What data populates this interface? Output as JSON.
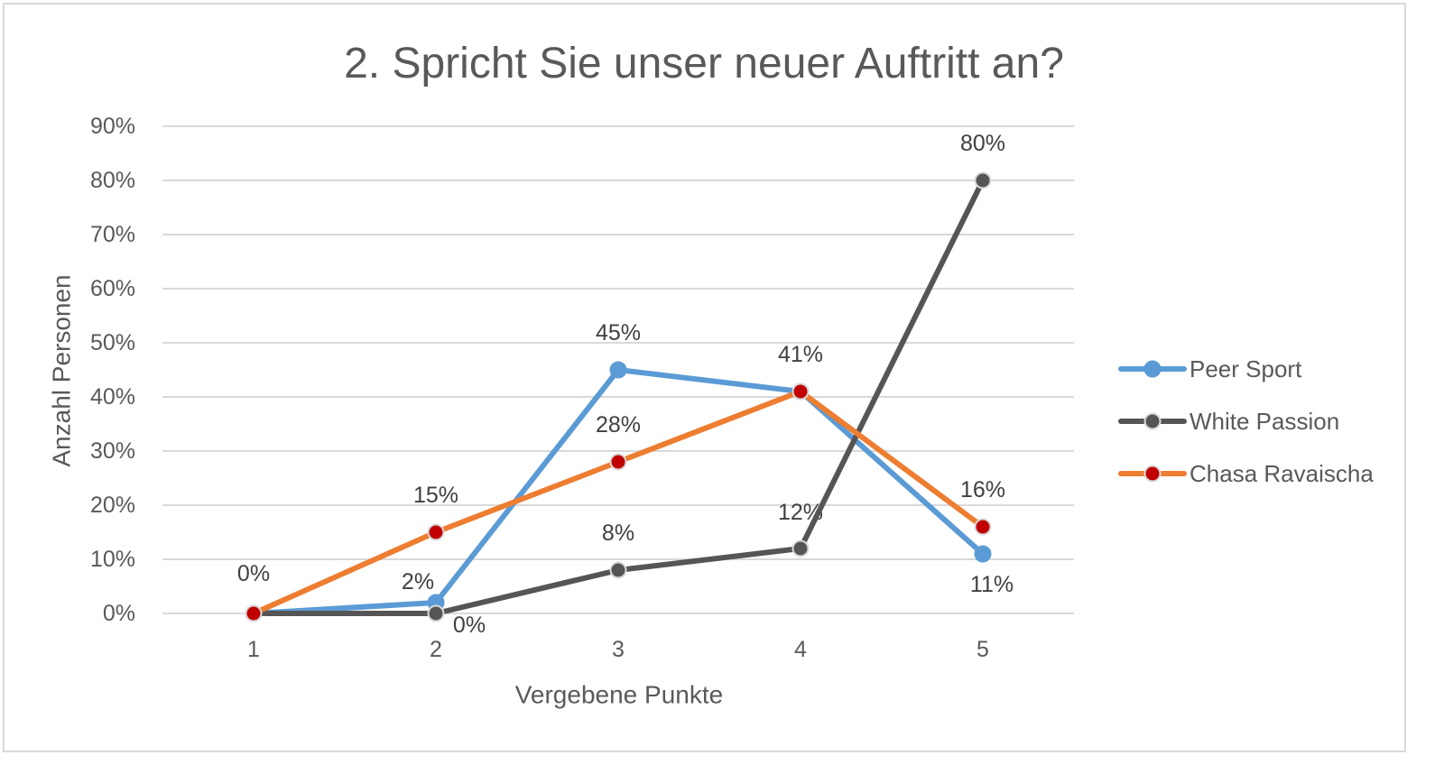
{
  "chart_data": {
    "type": "line",
    "title": "2. Spricht Sie unser neuer Auftritt an?",
    "xlabel": "Vergebene Punkte",
    "ylabel": "Anzahl Personen",
    "categories": [
      "1",
      "2",
      "3",
      "4",
      "5"
    ],
    "ylim": [
      0,
      90
    ],
    "ytick_step": 10,
    "yticks": [
      "0%",
      "10%",
      "20%",
      "30%",
      "40%",
      "50%",
      "60%",
      "70%",
      "80%",
      "90%"
    ],
    "grid": true,
    "legend_position": "right",
    "series": [
      {
        "name": "Peer Sport",
        "color": "#5B9BD5",
        "marker_color": "#5B9BD5",
        "marker_stroke": "#5B9BD5",
        "values": [
          0,
          2,
          45,
          41,
          11
        ],
        "data_labels": [
          "0%",
          "2%",
          "45%",
          "41%",
          "11%"
        ]
      },
      {
        "name": "White Passion",
        "color": "#555555",
        "marker_color": "#555555",
        "marker_stroke": "#D9D9D9",
        "values": [
          0,
          0,
          8,
          12,
          80
        ],
        "data_labels": [
          null,
          "0%",
          "8%",
          "12%",
          "80%"
        ]
      },
      {
        "name": "Chasa Ravaischa",
        "color": "#ED7D31",
        "marker_color": "#C00000",
        "marker_stroke": "#D9D9D9",
        "values": [
          0,
          15,
          28,
          41,
          16
        ],
        "data_labels": [
          null,
          "15%",
          "28%",
          null,
          "16%"
        ]
      }
    ]
  }
}
